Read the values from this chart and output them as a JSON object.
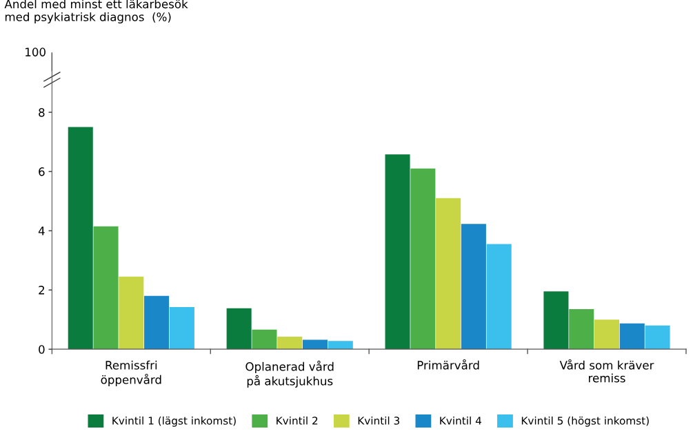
{
  "chart_data": {
    "type": "bar",
    "ylabel": "Andel med minst ett läkarbesök\nmed psykiatrisk diagnos  (%)",
    "categories": [
      "Remissfri\nöppenvård",
      "Oplanerad vård\npå akutsjukhus",
      "Primärvård",
      "Vård som kräver\nremiss"
    ],
    "series": [
      {
        "name": "Kvintil 1 (lägst inkomst)",
        "color": "#0a7d3e",
        "values": [
          7.5,
          1.38,
          6.58,
          1.95
        ]
      },
      {
        "name": "Kvintil 2",
        "color": "#4caf47",
        "values": [
          4.15,
          0.66,
          6.1,
          1.35
        ]
      },
      {
        "name": "Kvintil 3",
        "color": "#c8d645",
        "values": [
          2.45,
          0.42,
          5.1,
          1.0
        ]
      },
      {
        "name": "Kvintil 4",
        "color": "#1a87c9",
        "values": [
          1.8,
          0.32,
          4.23,
          0.87
        ]
      },
      {
        "name": "Kvintil 5 (högst inkomst)",
        "color": "#3bbfed",
        "values": [
          1.42,
          0.28,
          3.55,
          0.8
        ]
      }
    ],
    "ylim": [
      0,
      10
    ],
    "yticks": [
      0,
      2,
      4,
      6,
      8
    ],
    "annotations": [
      "100"
    ],
    "grid": false,
    "legend": "bottom"
  }
}
